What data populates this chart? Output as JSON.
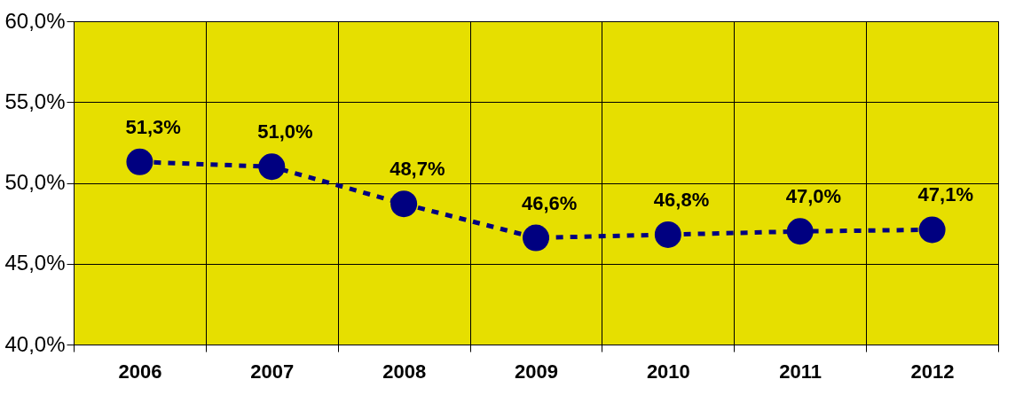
{
  "chart_data": {
    "type": "line",
    "categories": [
      "2006",
      "2007",
      "2008",
      "2009",
      "2010",
      "2011",
      "2012"
    ],
    "series": [
      {
        "color": "#000080",
        "values": [
          51.3,
          51.0,
          48.7,
          46.6,
          46.8,
          47.0,
          47.1
        ],
        "value_labels": [
          "51,3%",
          "51,0%",
          "48,7%",
          "46,6%",
          "46,8%",
          "47,0%",
          "47,1%"
        ]
      }
    ],
    "ylim": [
      40,
      60
    ],
    "yticks": [
      {
        "value": 40,
        "label": "40,0%"
      },
      {
        "value": 45,
        "label": "45,0%"
      },
      {
        "value": 50,
        "label": "50,0%"
      },
      {
        "value": 55,
        "label": "55,0%"
      },
      {
        "value": 60,
        "label": "60,0%"
      }
    ],
    "grid": true,
    "marker": "circle",
    "line_style": "dashed"
  }
}
